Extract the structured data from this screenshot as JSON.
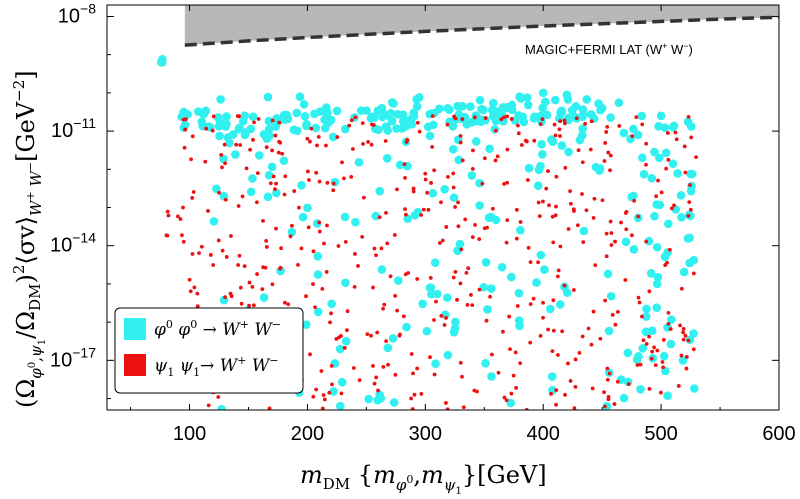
{
  "chart_data": {
    "type": "scatter",
    "title": "",
    "xlabel": "m_DM {m_φ0, m_ψ1}[GeV]",
    "xlabel_parts": {
      "main": "m",
      "main_sub": "DM",
      "brace_open": " {",
      "m1": "m",
      "m1_sub": "φ",
      "m1_sup": "0",
      "comma": ",",
      "m2": "m",
      "m2_sub": "ψ",
      "m2_subsub": "1",
      "tail": "}[GeV]"
    },
    "ylabel": "(Ω_φ0,ψ1/Ω_DM)^2 ⟨σv⟩_W+W- [GeV^-2]",
    "ylabel_parts": {
      "open": "(Ω",
      "sub1": "φ",
      "sup0": "0",
      "comma": ",",
      "sub2": "ψ",
      "sub2b": "1",
      "slash": "/Ω",
      "subdm": "DM",
      "close": ")",
      "sq": "2",
      "sv": "⟨σv⟩",
      "ww": "W",
      "wplus": "+",
      "ww2": " W",
      "wminus": "−",
      "units": "[GeV",
      "uexp": "−2",
      "uclose": "]"
    },
    "xlim": [
      30,
      600
    ],
    "ylim_log10": [
      -18.3,
      -7.7
    ],
    "x_ticks": [
      100,
      200,
      300,
      400,
      500,
      600
    ],
    "x_tick_labels": [
      "100",
      "200",
      "300",
      "400",
      "500",
      "600"
    ],
    "y_ticks_log10": [
      -8,
      -11,
      -14,
      -17
    ],
    "y_tick_labels": [
      {
        "base": "10",
        "exp": "−8"
      },
      {
        "base": "10",
        "exp": "−11"
      },
      {
        "base": "10",
        "exp": "−14"
      },
      {
        "base": "10",
        "exp": "−17"
      }
    ],
    "limit_curve": {
      "name": "MAGIC+FERMI LAT",
      "label": {
        "text": "MAGIC+FERMI LAT (W",
        "sup_plus": "+",
        "mid": " W",
        "sup_minus": "−",
        "end": ")"
      },
      "excluded_fill": "#b8b8b8",
      "line_color": "#333333",
      "x": [
        96,
        150,
        200,
        250,
        300,
        350,
        400,
        450,
        500,
        550,
        600
      ],
      "y_log10": [
        -8.75,
        -8.64,
        -8.55,
        -8.47,
        -8.39,
        -8.32,
        -8.25,
        -8.19,
        -8.13,
        -8.07,
        -8.02
      ]
    },
    "legend": {
      "position": "bottom-left"
    },
    "series": [
      {
        "name": "φ0 φ0 → W+ W−",
        "label_parts": {
          "a": "φ",
          "a_sup": "0",
          "b": " φ",
          "b_sup": "0",
          "arrow": " → W",
          "p": "+",
          "w": " W",
          "m": "−"
        },
        "color": "#33f0f0",
        "marker": "circle-large",
        "x_ranges": [
          [
            75,
            78
          ],
          [
            90,
            120
          ],
          [
            120,
            470
          ],
          [
            470,
            530
          ]
        ],
        "band_top_log10": [
          -9.1,
          -10.4,
          -10.1,
          -10.6
        ],
        "band_bottom_log10": [
          -9.2,
          -11.0,
          -18.3,
          -18.3
        ],
        "example_points": [
          {
            "x": 76,
            "y_log10": -9.2
          },
          {
            "x": 95,
            "y_log10": -10.5
          },
          {
            "x": 380,
            "y_log10": -10.1
          },
          {
            "x": 400,
            "y_log10": -10.0
          },
          {
            "x": 420,
            "y_log10": -10.05
          },
          {
            "x": 450,
            "y_log10": -10.4
          },
          {
            "x": 500,
            "y_log10": -10.6
          }
        ]
      },
      {
        "name": "ψ1 ψ1 → W+ W−",
        "label_parts": {
          "a": "ψ",
          "a_sub": "1",
          "b": " ψ",
          "b_sub": "1",
          "arrow": "→ W",
          "p": "+",
          "w": " W",
          "m": "−"
        },
        "color": "#ee1111",
        "marker": "circle-small",
        "x_ranges": [
          [
            80,
            95
          ],
          [
            95,
            530
          ]
        ],
        "band_top_log10": [
          -12.5,
          -10.6
        ],
        "band_bottom_log10": [
          -15.0,
          -18.3
        ],
        "example_points": [
          {
            "x": 95,
            "y_log10": -10.7
          },
          {
            "x": 200,
            "y_log10": -11.2
          },
          {
            "x": 330,
            "y_log10": -11.3
          },
          {
            "x": 430,
            "y_log10": -11.5
          },
          {
            "x": 520,
            "y_log10": -11.4
          }
        ]
      }
    ]
  }
}
